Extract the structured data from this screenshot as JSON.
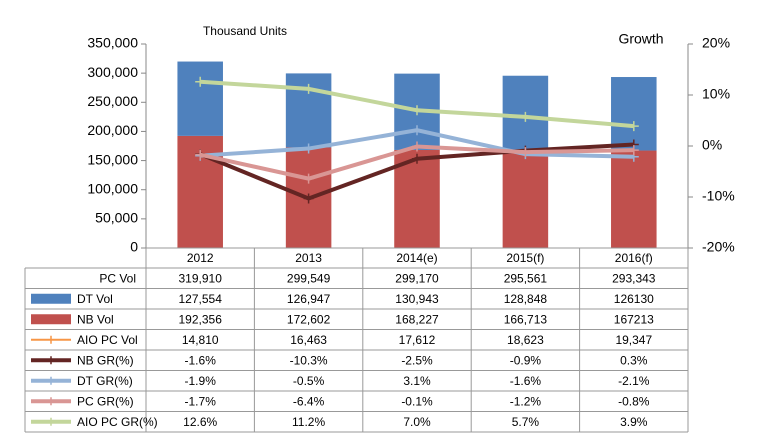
{
  "chart_data": {
    "type": "bar",
    "title": "Thousand Units",
    "y2_title": "Growth",
    "categories": [
      "2012",
      "2013",
      "2014(e)",
      "2015(f)",
      "2016(f)"
    ],
    "ylim": [
      0,
      350000
    ],
    "yticks": [
      0,
      {
        "value": 50000,
        "label": "50,000"
      },
      {
        "value": 100000,
        "label": "100,000"
      },
      {
        "value": 150000,
        "label": "150,000"
      },
      {
        "value": 200000,
        "label": "200,000"
      },
      {
        "value": 250000,
        "label": "250,000"
      },
      {
        "value": 300000,
        "label": "300,000"
      },
      {
        "value": 350000,
        "label": "350,000"
      }
    ],
    "y2lim": [
      -20,
      20
    ],
    "y2ticks": [
      {
        "value": -20,
        "label": "-20%"
      },
      {
        "value": -10,
        "label": "-10%"
      },
      {
        "value": 0,
        "label": "0%"
      },
      {
        "value": 10,
        "label": "10%"
      },
      {
        "value": 20,
        "label": "20%"
      }
    ],
    "series": [
      {
        "name": "PC Vol",
        "values": [
          319910,
          299549,
          299170,
          295561,
          293343
        ],
        "value_labels": [
          "319,910",
          "299,549",
          "299,170",
          "295,561",
          "293,343"
        ]
      },
      {
        "name": "DT Vol",
        "color": "#4f81bd",
        "mark": "bar",
        "values": [
          127554,
          126947,
          130943,
          128848,
          126130
        ],
        "value_labels": [
          "127,554",
          "126,947",
          "130,943",
          "128,848",
          "126130"
        ]
      },
      {
        "name": "NB Vol",
        "color": "#c0504d",
        "mark": "bar",
        "values": [
          192356,
          172602,
          168227,
          166713,
          167213
        ],
        "value_labels": [
          "192,356",
          "172,602",
          "168,227",
          "166,713",
          "167213"
        ]
      },
      {
        "name": "AIO PC Vol",
        "color": "#f79646",
        "values": [
          14810,
          16463,
          17612,
          18623,
          19347
        ],
        "value_labels": [
          "14,810",
          "16,463",
          "17,612",
          "18,623",
          "19,347"
        ]
      },
      {
        "name": "NB GR(%)",
        "color": "#632523",
        "mark": "line",
        "axis": "y2",
        "values": [
          -1.6,
          -10.3,
          -2.5,
          -0.9,
          0.3
        ],
        "value_labels": [
          "-1.6%",
          "-10.3%",
          "-2.5%",
          "-0.9%",
          "0.3%"
        ]
      },
      {
        "name": "DT GR(%)",
        "color": "#95b3d7",
        "mark": "line",
        "axis": "y2",
        "values": [
          -1.9,
          -0.5,
          3.1,
          -1.6,
          -2.1
        ],
        "value_labels": [
          "-1.9%",
          "-0.5%",
          "3.1%",
          "-1.6%",
          "-2.1%"
        ]
      },
      {
        "name": "PC GR(%)",
        "color": "#d99694",
        "mark": "line",
        "axis": "y2",
        "values": [
          -1.7,
          -6.4,
          -0.1,
          -1.2,
          -0.8
        ],
        "value_labels": [
          "-1.7%",
          "-6.4%",
          "-0.1%",
          "-1.2%",
          "-0.8%"
        ]
      },
      {
        "name": "AIO PC GR(%)",
        "color": "#c3d69b",
        "mark": "line",
        "axis": "y2",
        "values": [
          12.6,
          11.2,
          7.0,
          5.7,
          3.9
        ],
        "value_labels": [
          "12.6%",
          "11.2%",
          "7.0%",
          "5.7%",
          "3.9%"
        ]
      }
    ]
  }
}
